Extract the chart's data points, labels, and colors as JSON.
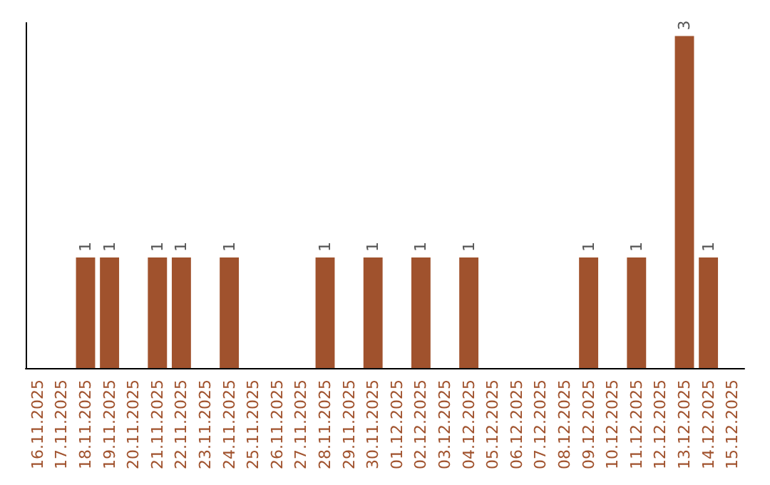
{
  "chart_data": {
    "type": "bar",
    "categories": [
      "16.11.2025",
      "17.11.2025",
      "18.11.2025",
      "19.11.2025",
      "20.11.2025",
      "21.11.2025",
      "22.11.2025",
      "23.11.2025",
      "24.11.2025",
      "25.11.2025",
      "26.11.2025",
      "27.11.2025",
      "28.11.2025",
      "29.11.2025",
      "30.11.2025",
      "01.12.2025",
      "02.12.2025",
      "03.12.2025",
      "04.12.2025",
      "05.12.2025",
      "06.12.2025",
      "07.12.2025",
      "08.12.2025",
      "09.12.2025",
      "10.12.2025",
      "11.12.2025",
      "12.12.2025",
      "13.12.2025",
      "14.12.2025",
      "15.12.2025"
    ],
    "values": [
      0,
      0,
      1,
      1,
      0,
      1,
      1,
      0,
      1,
      0,
      0,
      0,
      1,
      0,
      1,
      0,
      1,
      0,
      1,
      0,
      0,
      0,
      0,
      1,
      0,
      1,
      0,
      3,
      1,
      0
    ],
    "value_labels": [
      null,
      null,
      "1",
      "1",
      null,
      "1",
      "1",
      null,
      "1",
      null,
      null,
      null,
      "1",
      null,
      "1",
      null,
      "1",
      null,
      "1",
      null,
      null,
      null,
      null,
      "1",
      null,
      "1",
      null,
      "3",
      "1",
      null
    ],
    "color": "#a0522d",
    "grid": false,
    "tick_labels": "x"
  }
}
